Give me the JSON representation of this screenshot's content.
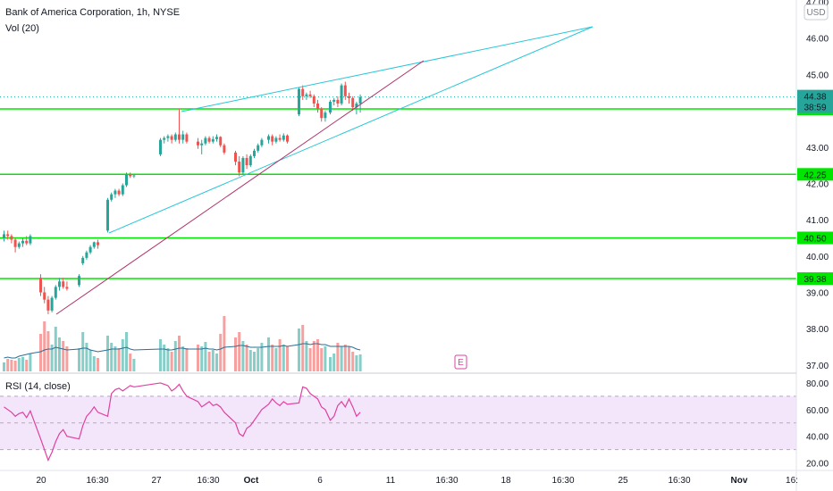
{
  "header": {
    "symbol_line": "Bank of America Corporation, 1h, NYSE",
    "volume_label": "Vol (20)",
    "currency_button": "USD",
    "earnings_marker": "E"
  },
  "rsi_pane": {
    "label": "RSI (14, close)"
  },
  "price_badges": {
    "last_price": "44.38",
    "countdown": "38:59"
  },
  "colors": {
    "up": "#26a69a",
    "down": "#ef5350",
    "level_line": "#00e600",
    "channel_line": "#26c6da",
    "trend_line": "#b0306a",
    "rsi_line": "#e040a0",
    "rsi_band": "#f3e6fb",
    "price_badge": "#26a69a"
  },
  "chart_data": [
    {
      "type": "candlestick",
      "title": "",
      "series_name": "",
      "x_ticks": [
        "20",
        "16:30",
        "27",
        "16:30",
        "Oct",
        "6",
        "11",
        "16:30",
        "18",
        "16:30",
        "25",
        "16:30",
        "Nov",
        "16:"
      ],
      "y_ticks": [
        37.0,
        38.0,
        39.0,
        40.0,
        41.0,
        42.0,
        43.0,
        44.0,
        45.0,
        46.0,
        47.0
      ],
      "ylim": [
        36.8,
        47.05
      ],
      "grid": false,
      "horizontal_levels": [
        {
          "value": 44.05,
          "label": "44.05"
        },
        {
          "value": 42.25,
          "label": "42.25"
        },
        {
          "value": 40.5,
          "label": "40.50"
        },
        {
          "value": 39.38,
          "label": "39.38"
        }
      ],
      "last_price": 44.38,
      "candles": [
        [
          40.5,
          40.7,
          40.4,
          40.6
        ],
        [
          40.6,
          40.7,
          40.45,
          40.55
        ],
        [
          40.55,
          40.6,
          40.35,
          40.45
        ],
        [
          40.45,
          40.5,
          40.1,
          40.25
        ],
        [
          40.25,
          40.4,
          40.2,
          40.35
        ],
        [
          40.35,
          40.5,
          40.25,
          40.42
        ],
        [
          40.42,
          40.55,
          40.3,
          40.35
        ],
        [
          40.35,
          40.6,
          40.3,
          40.55
        ],
        [
          39.4,
          39.5,
          38.9,
          39.0
        ],
        [
          39.0,
          39.15,
          38.7,
          38.8
        ],
        [
          38.8,
          38.9,
          38.4,
          38.5
        ],
        [
          38.5,
          38.9,
          38.45,
          38.85
        ],
        [
          38.85,
          39.2,
          38.8,
          39.15
        ],
        [
          39.15,
          39.4,
          39.05,
          39.3
        ],
        [
          39.3,
          39.4,
          39.1,
          39.15
        ],
        [
          39.15,
          39.3,
          39.05,
          39.1
        ],
        [
          39.2,
          39.5,
          39.15,
          39.45
        ],
        [
          39.8,
          40.0,
          39.75,
          39.95
        ],
        [
          39.95,
          40.15,
          39.9,
          40.1
        ],
        [
          40.1,
          40.3,
          40.05,
          40.25
        ],
        [
          40.25,
          40.4,
          40.2,
          40.38
        ],
        [
          40.38,
          40.45,
          40.2,
          40.3
        ],
        [
          40.7,
          41.6,
          40.65,
          41.55
        ],
        [
          41.55,
          41.75,
          41.5,
          41.7
        ],
        [
          41.7,
          41.85,
          41.6,
          41.8
        ],
        [
          41.8,
          41.85,
          41.65,
          41.7
        ],
        [
          41.7,
          42.0,
          41.65,
          41.95
        ],
        [
          41.95,
          42.3,
          41.9,
          42.25
        ],
        [
          42.25,
          42.3,
          42.15,
          42.2
        ],
        [
          42.2,
          42.25,
          42.15,
          42.22
        ],
        [
          42.8,
          43.25,
          42.75,
          43.2
        ],
        [
          43.2,
          43.3,
          43.1,
          43.25
        ],
        [
          43.25,
          43.35,
          43.15,
          43.3
        ],
        [
          43.3,
          43.35,
          43.1,
          43.2
        ],
        [
          43.2,
          43.4,
          43.15,
          43.35
        ],
        [
          43.35,
          44.05,
          43.1,
          43.2
        ],
        [
          43.2,
          43.45,
          43.1,
          43.35
        ],
        [
          43.35,
          43.4,
          43.1,
          43.15
        ],
        [
          43.15,
          43.25,
          42.95,
          43.05
        ],
        [
          43.05,
          43.2,
          42.8,
          43.1
        ],
        [
          43.1,
          43.3,
          43.05,
          43.25
        ],
        [
          43.25,
          43.3,
          43.1,
          43.15
        ],
        [
          43.15,
          43.3,
          43.1,
          43.22
        ],
        [
          43.22,
          43.35,
          43.15,
          43.28
        ],
        [
          43.28,
          43.3,
          43.0,
          43.05
        ],
        [
          43.05,
          43.1,
          42.8,
          42.85
        ],
        [
          42.85,
          42.9,
          42.5,
          42.6
        ],
        [
          42.6,
          42.75,
          42.2,
          42.3
        ],
        [
          42.3,
          42.75,
          42.25,
          42.7
        ],
        [
          42.7,
          42.8,
          42.4,
          42.5
        ],
        [
          42.5,
          42.8,
          42.45,
          42.75
        ],
        [
          42.75,
          42.95,
          42.7,
          42.9
        ],
        [
          42.9,
          43.1,
          42.85,
          43.05
        ],
        [
          43.05,
          43.25,
          43.0,
          43.2
        ],
        [
          43.2,
          43.35,
          43.1,
          43.3
        ],
        [
          43.3,
          43.35,
          43.05,
          43.15
        ],
        [
          43.15,
          43.3,
          43.1,
          43.25
        ],
        [
          43.25,
          43.35,
          43.15,
          43.2
        ],
        [
          43.2,
          43.38,
          43.15,
          43.32
        ],
        [
          43.32,
          43.35,
          43.1,
          43.15
        ],
        [
          43.9,
          44.65,
          43.85,
          44.6
        ],
        [
          44.6,
          44.7,
          44.3,
          44.4
        ],
        [
          44.4,
          44.5,
          44.3,
          44.45
        ],
        [
          44.45,
          44.55,
          44.35,
          44.4
        ],
        [
          44.4,
          44.45,
          44.1,
          44.2
        ],
        [
          44.2,
          44.3,
          43.95,
          44.05
        ],
        [
          44.05,
          44.1,
          43.7,
          43.8
        ],
        [
          43.8,
          44.0,
          43.7,
          43.95
        ],
        [
          43.95,
          44.3,
          43.9,
          44.25
        ],
        [
          44.25,
          44.35,
          44.15,
          44.3
        ],
        [
          44.3,
          44.4,
          44.1,
          44.2
        ],
        [
          44.2,
          44.75,
          44.15,
          44.7
        ],
        [
          44.7,
          44.8,
          44.3,
          44.4
        ],
        [
          44.4,
          44.5,
          44.2,
          44.35
        ],
        [
          44.35,
          44.4,
          44.0,
          44.1
        ],
        [
          44.1,
          44.25,
          43.9,
          44.2
        ],
        [
          44.2,
          44.45,
          43.95,
          44.38
        ]
      ],
      "volume": [
        10,
        14,
        13,
        12,
        15,
        16,
        13,
        20,
        42,
        56,
        45,
        30,
        50,
        38,
        34,
        28,
        26,
        44,
        32,
        24,
        17,
        15,
        40,
        32,
        28,
        26,
        36,
        44,
        20,
        14,
        36,
        30,
        26,
        22,
        34,
        40,
        28,
        26,
        30,
        28,
        33,
        22,
        24,
        20,
        42,
        62,
        38,
        44,
        34,
        30,
        24,
        22,
        26,
        32,
        38,
        30,
        26,
        36,
        30,
        28,
        48,
        52,
        34,
        26,
        34,
        36,
        26,
        28,
        16,
        20,
        32,
        28,
        30,
        28,
        22,
        18,
        19
      ],
      "volume_ma": [
        15,
        16,
        15,
        15,
        17,
        18,
        19,
        20,
        22,
        24,
        25,
        25,
        27,
        26,
        25,
        24,
        25,
        26,
        26,
        24,
        23,
        22,
        24,
        25,
        25,
        25,
        26,
        27,
        25,
        24,
        25,
        25,
        24,
        24,
        25,
        26,
        26,
        25,
        25,
        25,
        26,
        25,
        25,
        24,
        25,
        27,
        28,
        29,
        29,
        28,
        27,
        27,
        27,
        27,
        28,
        28,
        28,
        28,
        29,
        28,
        30,
        31,
        31,
        30,
        31,
        31,
        30,
        30,
        28,
        28,
        28,
        28,
        28,
        28,
        27,
        25,
        24
      ],
      "rsi": {
        "ylim": [
          15,
          86
        ],
        "y_ticks": [
          20.0,
          40.0,
          60.0,
          80.0
        ],
        "overbought": 70,
        "oversold": 30,
        "values": [
          62,
          60,
          58,
          55,
          57,
          58,
          54,
          59,
          38,
          30,
          22,
          28,
          36,
          42,
          45,
          40,
          38,
          48,
          55,
          58,
          62,
          58,
          55,
          72,
          75,
          76,
          74,
          76,
          78,
          77,
          80,
          79,
          78,
          74,
          76,
          79,
          74,
          70,
          66,
          62,
          64,
          66,
          63,
          64,
          62,
          58,
          50,
          42,
          40,
          46,
          48,
          52,
          56,
          60,
          64,
          68,
          65,
          63,
          66,
          64,
          65,
          77,
          76,
          72,
          70,
          68,
          62,
          60,
          52,
          55,
          63,
          66,
          62,
          68,
          62,
          55,
          58
        ]
      },
      "drawings": {
        "channel_upper": [
          [
            203,
            125
          ],
          [
            663,
            30
          ]
        ],
        "channel_lower": [
          [
            122,
            261
          ],
          [
            663,
            30
          ]
        ],
        "trend_line": [
          [
            63,
            352
          ],
          [
            474,
            68
          ]
        ],
        "level_lines_span": [
          0,
          891
        ]
      }
    }
  ]
}
